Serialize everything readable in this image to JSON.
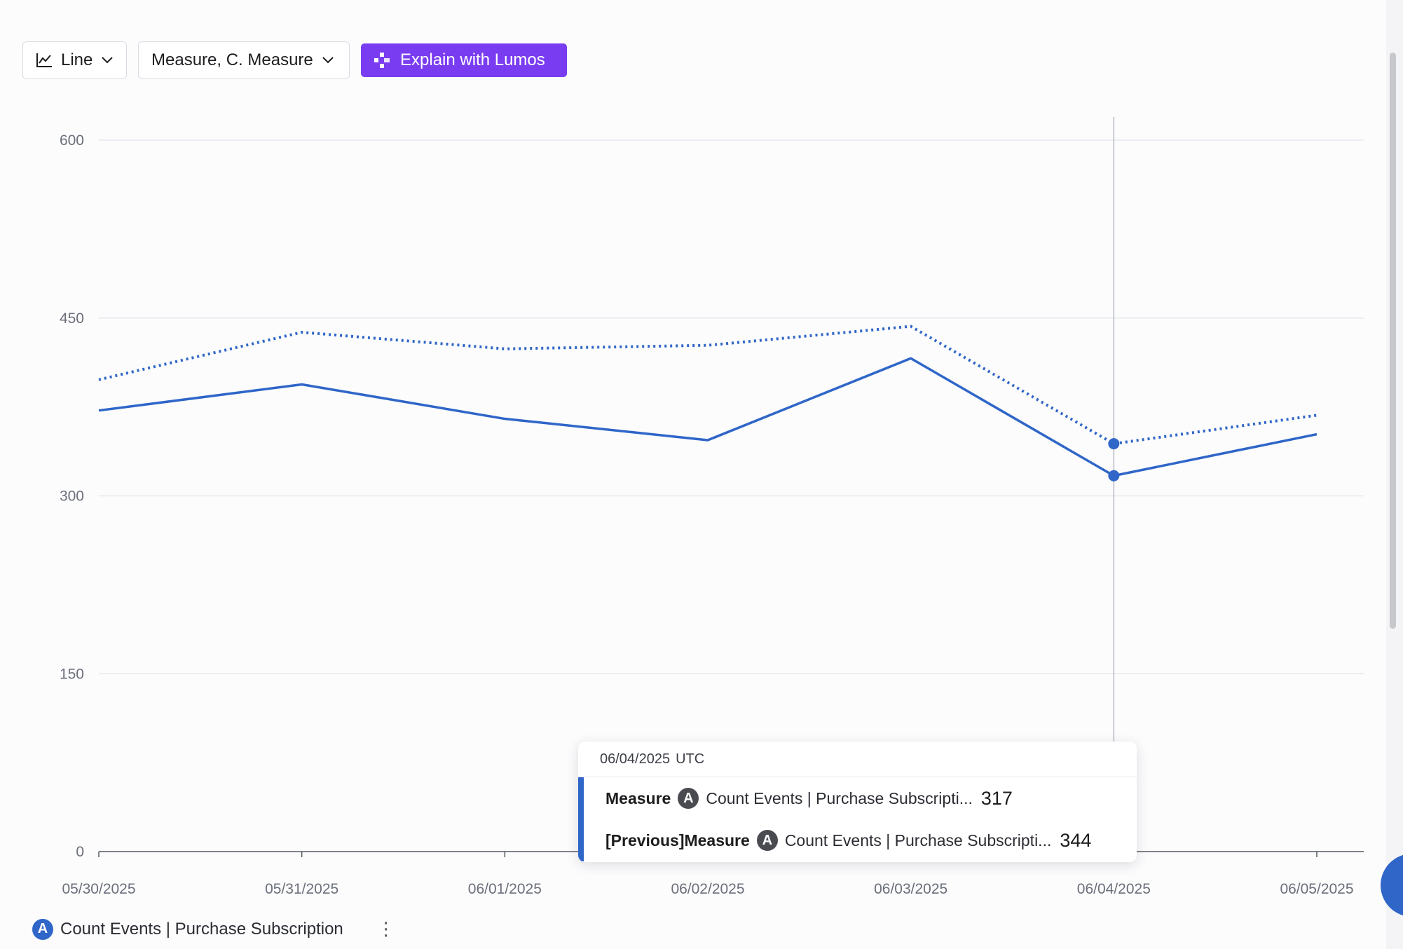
{
  "toolbar": {
    "chart_type_label": "Line",
    "measure_label": "Measure, C. Measure",
    "explain_label": "Explain with Lumos"
  },
  "tooltip": {
    "date": "06/04/2025",
    "timezone": "UTC",
    "rows": [
      {
        "name": "Measure",
        "badge": "A",
        "label": "Count Events | Purchase Subscripti...",
        "value": "317"
      },
      {
        "name": "[Previous]Measure",
        "badge": "A",
        "label": "Count Events | Purchase Subscripti...",
        "value": "344"
      }
    ]
  },
  "legend": {
    "badge": "A",
    "label": "Count Events | Purchase Subscription",
    "menu_icon": "kebab-icon"
  },
  "colors": {
    "series": "#2f66c8",
    "accent": "#7a3cf0"
  },
  "chart_data": {
    "type": "line",
    "x": [
      "05/30/2025",
      "05/31/2025",
      "06/01/2025",
      "06/02/2025",
      "06/03/2025",
      "06/04/2025",
      "06/05/2025"
    ],
    "series": [
      {
        "name": "Measure",
        "style": "solid",
        "values": [
          372,
          394,
          365,
          347,
          416,
          317,
          352
        ]
      },
      {
        "name": "[Previous]Measure",
        "style": "dotted",
        "values": [
          398,
          438,
          424,
          427,
          443,
          344,
          368
        ]
      }
    ],
    "yticks": [
      0,
      150,
      300,
      450,
      600
    ],
    "ylim": [
      0,
      600
    ],
    "grid": true,
    "highlight_index": 5
  }
}
